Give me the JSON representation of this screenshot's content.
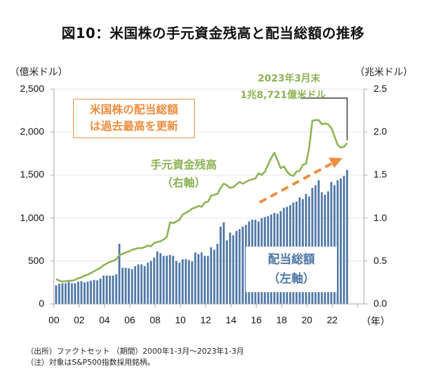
{
  "title": "図10：米国株の手元資金残高と配当総額の推移",
  "left_axis_unit": "（億米ドル）",
  "right_axis_unit": "（兆米ドル）",
  "x_axis_unit": "（年）",
  "callout": {
    "line1": "米国株の配当総額",
    "line2": "は過去最高を更新"
  },
  "cash_label": {
    "line1": "手元資金残高",
    "line2": "（右軸）"
  },
  "dividend_label": {
    "line1": "配当総額",
    "line2": "（左軸）"
  },
  "annotation": {
    "line1": "2023年3月末",
    "line2": "1兆8,721億米ドル"
  },
  "notes": {
    "source": "（出所）ファクトセット （期間）2000年1-3月～2023年1-3月",
    "note": "（注）対象はS&P500指数採用銘柄。"
  },
  "colors": {
    "bar": "#4e77a6",
    "line": "#8db254",
    "arrow": "#ee8e3f",
    "grid": "#e6e6e6",
    "axis": "#a6a6a6"
  },
  "chart_data": {
    "type": "bar+line",
    "title": "図10：米国株の手元資金残高と配当総額の推移",
    "xlabel": "（年）",
    "ylabel_left": "（億米ドル）",
    "ylabel_right": "（兆米ドル）",
    "x_tick_labels": [
      "00",
      "02",
      "04",
      "06",
      "08",
      "10",
      "12",
      "14",
      "16",
      "18",
      "20",
      "22"
    ],
    "left_ticks": [
      "0",
      "500",
      "1,000",
      "1,500",
      "2,000",
      "2,500"
    ],
    "right_ticks": [
      "0.0",
      "0.5",
      "1.0",
      "1.5",
      "2.0",
      "2.5"
    ],
    "ylim_left": [
      0,
      2500
    ],
    "ylim_right": [
      0,
      2.5
    ],
    "grid": true,
    "x_start": "2000Q1",
    "x_end": "2023Q1",
    "frequency": "quarterly",
    "series": [
      {
        "name": "配当総額（左軸）",
        "type": "bar",
        "axis": "left",
        "unit": "億米ドル",
        "values": [
          215,
          235,
          240,
          240,
          255,
          240,
          240,
          260,
          265,
          250,
          260,
          270,
          280,
          275,
          295,
          330,
          330,
          330,
          330,
          345,
          700,
          420,
          420,
          415,
          405,
          440,
          460,
          460,
          440,
          480,
          500,
          540,
          610,
          590,
          560,
          560,
          570,
          560,
          500,
          480,
          520,
          520,
          510,
          495,
          600,
          580,
          600,
          560,
          560,
          660,
          630,
          700,
          900,
          950,
          740,
          830,
          800,
          850,
          870,
          900,
          920,
          960,
          980,
          980,
          960,
          1000,
          1010,
          1020,
          1040,
          1060,
          1050,
          1080,
          1120,
          1130,
          1150,
          1180,
          1190,
          1240,
          1220,
          1280,
          1250,
          1350,
          1380,
          1440,
          1300,
          1270,
          1310,
          1420,
          1380,
          1440,
          1460,
          1490,
          1560
        ]
      },
      {
        "name": "手元資金残高（右軸）",
        "type": "line",
        "axis": "right",
        "unit": "兆米ドル",
        "values": [
          0.29,
          0.27,
          0.26,
          0.265,
          0.27,
          0.27,
          0.28,
          0.3,
          0.31,
          0.33,
          0.34,
          0.36,
          0.38,
          0.4,
          0.42,
          0.45,
          0.47,
          0.49,
          0.5,
          0.52,
          0.57,
          0.58,
          0.6,
          0.61,
          0.63,
          0.64,
          0.65,
          0.65,
          0.66,
          0.68,
          0.67,
          0.71,
          0.72,
          0.73,
          0.75,
          0.78,
          0.95,
          0.94,
          0.96,
          0.98,
          1.04,
          1.06,
          1.08,
          1.11,
          1.12,
          1.14,
          1.13,
          1.18,
          1.19,
          1.26,
          1.27,
          1.28,
          1.35,
          1.4,
          1.38,
          1.35,
          1.36,
          1.39,
          1.42,
          1.4,
          1.42,
          1.44,
          1.45,
          1.46,
          1.52,
          1.5,
          1.54,
          1.62,
          1.7,
          1.76,
          1.67,
          1.58,
          1.6,
          1.54,
          1.5,
          1.49,
          1.54,
          1.55,
          1.62,
          1.63,
          1.82,
          2.13,
          2.14,
          2.14,
          2.09,
          2.1,
          2.09,
          2.05,
          1.95,
          1.85,
          1.82,
          1.83,
          1.872
        ]
      }
    ],
    "annotations": [
      "2023年3月末 1兆8,721億米ドル",
      "米国株の配当総額は過去最高を更新"
    ],
    "legend": "inline-labels"
  }
}
